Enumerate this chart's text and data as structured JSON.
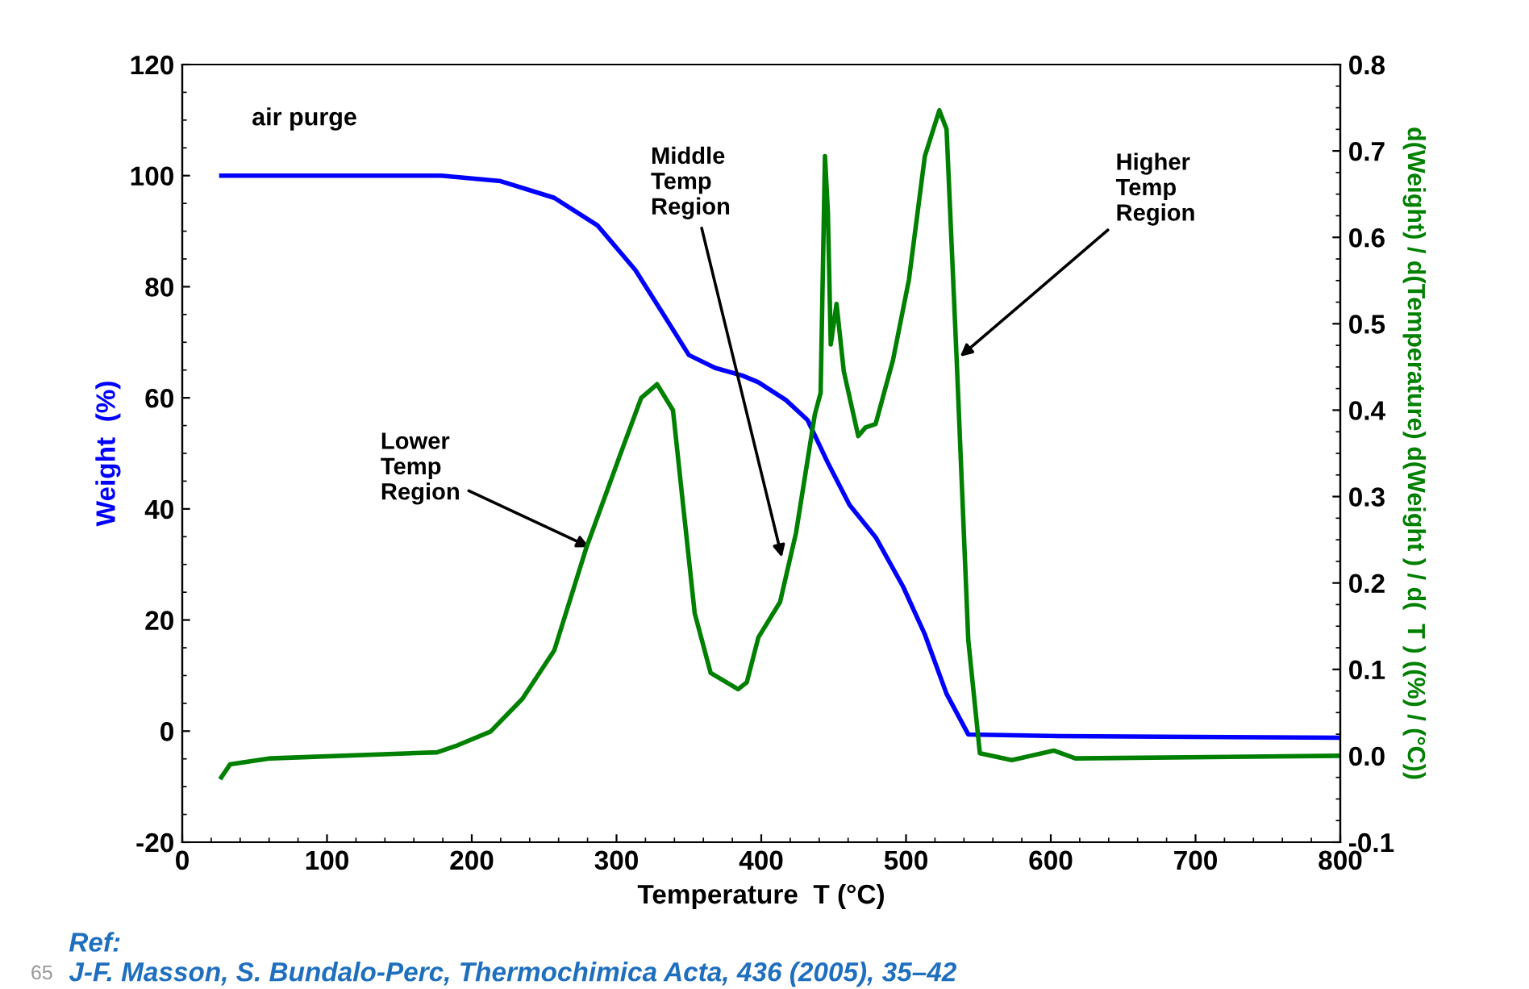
{
  "chart_data": {
    "type": "line",
    "xlabel": "Temperature  T (°C)",
    "ylabel": "Weight  (%)",
    "y2label": "d(Weight) / d(Temperature) d(Weight ) / d(  T ) ((%) / (°C))",
    "xlim": [
      0,
      800
    ],
    "xticks": [
      0,
      100,
      200,
      300,
      400,
      500,
      600,
      700,
      800
    ],
    "ylim": [
      -20,
      120
    ],
    "yticks": [
      -20,
      0,
      20,
      40,
      60,
      80,
      100,
      120
    ],
    "y2lim": [
      -0.1,
      0.8
    ],
    "y2ticks": [
      -0.1,
      {
        "value": 0,
        "label": "0.0"
      },
      0.1,
      0.2,
      0.3,
      0.4,
      0.5,
      0.6,
      0.7,
      0.8
    ],
    "grid": false,
    "marker": "none",
    "line_style": "solid",
    "series": [
      {
        "color": "#0000ff",
        "x": [
          27,
          179,
          220,
          257,
          287,
          313,
          331,
          350,
          368,
          387,
          398,
          417,
          432,
          446,
          461,
          479,
          498,
          513,
          528,
          543,
          606,
          800
        ],
        "values": [
          100,
          100,
          99,
          96,
          91,
          83,
          75.6,
          67.7,
          65.4,
          64,
          62.8,
          59.6,
          56,
          48.3,
          40.7,
          34.9,
          26,
          17.4,
          6.7,
          -0.6,
          -0.9,
          -1.2
        ]
      },
      {
        "color": "#008000",
        "axis": "y2",
        "x": [
          27,
          33,
          61,
          176,
          190,
          213,
          235,
          257,
          279,
          302,
          317,
          328,
          339,
          346,
          354,
          365,
          384,
          390,
          398,
          413,
          424,
          437,
          441,
          444,
          446,
          448,
          452,
          457,
          467,
          472,
          479,
          491,
          502,
          513,
          523,
          528,
          535,
          543,
          551,
          573,
          602,
          617,
          800
        ],
        "values": [
          -0.025,
          -0.01,
          -0.003,
          0.004,
          0.012,
          0.028,
          0.066,
          0.122,
          0.24,
          0.346,
          0.414,
          0.43,
          0.4,
          0.29,
          0.165,
          0.096,
          0.077,
          0.085,
          0.137,
          0.178,
          0.258,
          0.395,
          0.42,
          0.694,
          0.63,
          0.476,
          0.523,
          0.445,
          0.37,
          0.38,
          0.384,
          0.458,
          0.551,
          0.694,
          0.747,
          0.725,
          0.458,
          0.134,
          0.003,
          -0.005,
          0.006,
          -0.003,
          0.0
        ]
      }
    ],
    "annotations": [
      "air purge",
      {
        "text": "Lower\nTemp\nRegion",
        "x": 284,
        "y": 32.8
      },
      {
        "text": "Middle\nTemp\nRegion",
        "x": 415,
        "y": 30.5
      },
      {
        "text": "Higher\nTemp\nRegion",
        "x": 535,
        "y": 66.9
      },
      "Ref:",
      "J-F. Masson, S. Bundalo-Perc, Thermochimica Acta, 436 (2005), 35–42",
      "65"
    ]
  }
}
